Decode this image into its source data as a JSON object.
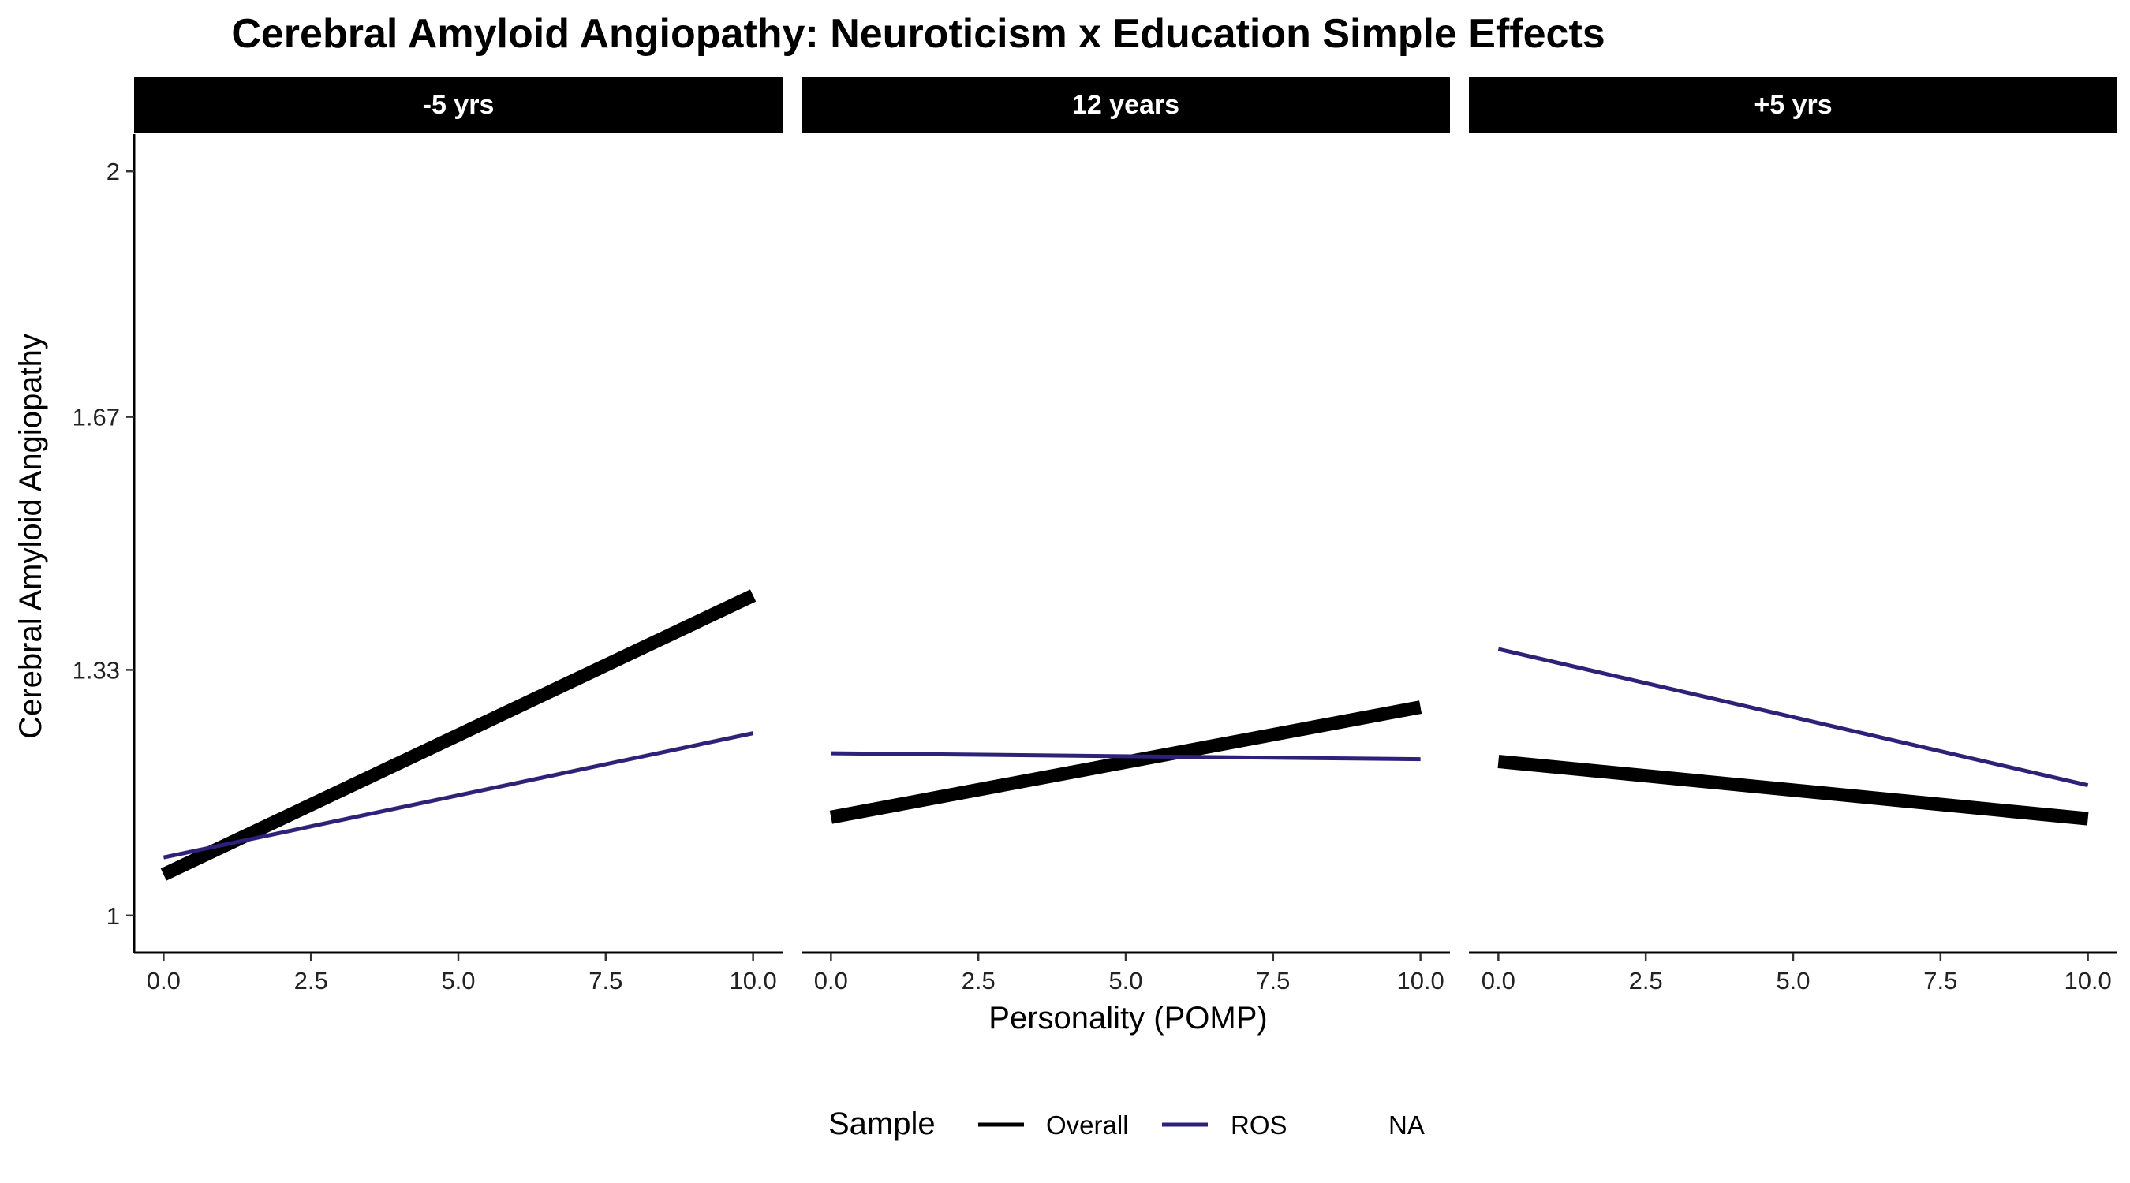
{
  "chart_data": {
    "type": "line",
    "title": "Cerebral Amyloid Angiopathy: Neuroticism x Education Simple Effects",
    "xlabel": "Personality (POMP)",
    "ylabel": "Cerebral Amyloid Angiopathy",
    "xlim": [
      -0.5,
      10.5
    ],
    "ylim": [
      0.95,
      2.05
    ],
    "x_ticks": [
      0,
      2.5,
      5,
      7.5,
      10
    ],
    "x_tick_labels": [
      "0.0",
      "2.5",
      "5.0",
      "7.5",
      "10.0"
    ],
    "y_ticks": [
      1,
      1.33,
      1.67,
      2
    ],
    "y_tick_labels": [
      "1",
      "1.33",
      "1.67",
      "2"
    ],
    "grid": false,
    "legend": {
      "title": "Sample",
      "position": "bottom",
      "entries": [
        "Overall",
        "ROS",
        "NA"
      ]
    },
    "colors": {
      "Overall": "#000000",
      "ROS": "#2E2178"
    },
    "panels": [
      {
        "label": "-5 yrs",
        "series": [
          {
            "name": "Overall",
            "x": [
              0,
              10
            ],
            "y": [
              1.055,
              1.43
            ]
          },
          {
            "name": "ROS",
            "x": [
              0,
              10
            ],
            "y": [
              1.078,
              1.245
            ]
          }
        ]
      },
      {
        "label": "12 years",
        "series": [
          {
            "name": "Overall",
            "x": [
              0,
              10
            ],
            "y": [
              1.132,
              1.28
            ]
          },
          {
            "name": "ROS",
            "x": [
              0,
              10
            ],
            "y": [
              1.218,
              1.21
            ]
          }
        ]
      },
      {
        "label": "+5 yrs",
        "series": [
          {
            "name": "Overall",
            "x": [
              0,
              10
            ],
            "y": [
              1.207,
              1.13
            ]
          },
          {
            "name": "ROS",
            "x": [
              0,
              10
            ],
            "y": [
              1.358,
              1.175
            ]
          }
        ]
      }
    ]
  }
}
